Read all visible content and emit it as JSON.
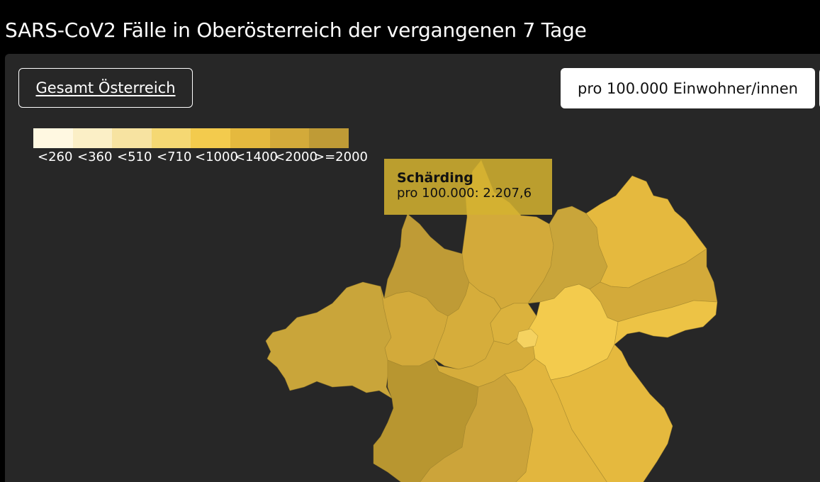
{
  "header": {
    "title": "SARS-CoV2 Fälle in Oberösterreich der vergangenen 7 Tage"
  },
  "controls": {
    "austria_button": "Gesamt Österreich",
    "metric_button": "pro 100.000 Einwohner/innen"
  },
  "legend": {
    "items": [
      {
        "label": "<260",
        "color": "#fff8e1"
      },
      {
        "label": "<360",
        "color": "#fbefc6"
      },
      {
        "label": "<510",
        "color": "#f7e3a1"
      },
      {
        "label": "<710",
        "color": "#f5d873"
      },
      {
        "label": "<1000",
        "color": "#f3cb4d"
      },
      {
        "label": "<1400",
        "color": "#e5b93e"
      },
      {
        "label": "<2000",
        "color": "#d3aa3a"
      },
      {
        "label": ">=2000",
        "color": "#bf9b36"
      }
    ]
  },
  "tooltip": {
    "district": "Schärding",
    "value_text": "pro 100.000: 2.207,6"
  },
  "map": {
    "region": "Oberösterreich",
    "fill_colors": {
      "very_dark": "#b2902c",
      "dark": "#bf9b36",
      "mid_dark": "#c9a53a",
      "mid": "#d3aa3a",
      "mid_light": "#dbb23d",
      "light": "#e5b93e",
      "lighter": "#edc345",
      "lightest": "#f3cb4d"
    }
  }
}
